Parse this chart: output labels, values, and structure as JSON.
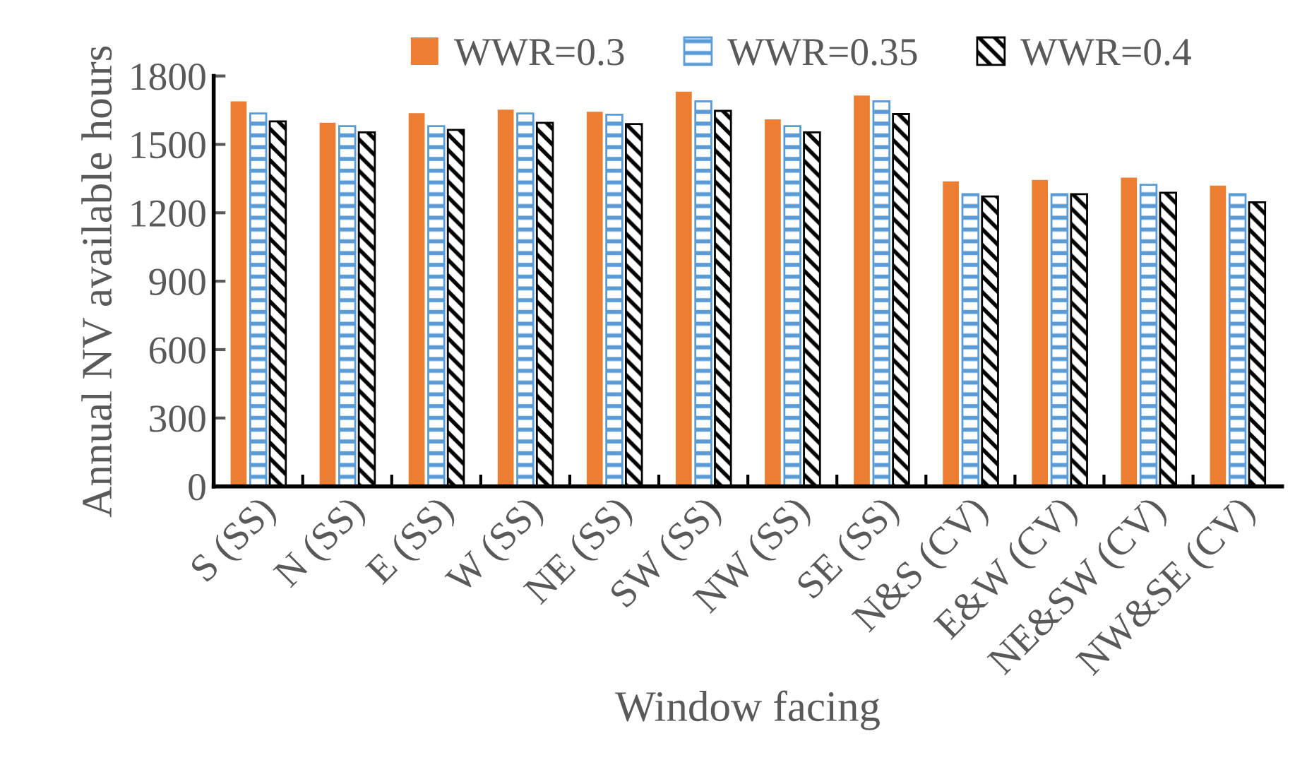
{
  "chart_data": {
    "type": "bar",
    "xlabel": "Window facing",
    "ylabel": "Annual NV available hours",
    "categories": [
      "S (SS)",
      "N (SS)",
      "E (SS)",
      "W (SS)",
      "NE (SS)",
      "SW (SS)",
      "NW (SS)",
      "SE (SS)",
      "N&S (CV)",
      "E&W (CV)",
      "NE&SW (CV)",
      "NW&SE (CV)"
    ],
    "series": [
      {
        "name": "WWR=0.3",
        "color": "#ed7d31",
        "values": [
          1689,
          1595,
          1637,
          1652,
          1643,
          1731,
          1610,
          1714,
          1338,
          1344,
          1354,
          1319
        ]
      },
      {
        "name": "WWR=0.35",
        "color": "#5b9bd5",
        "values": [
          1636,
          1580,
          1580,
          1636,
          1630,
          1689,
          1580,
          1689,
          1282,
          1282,
          1323,
          1282
        ]
      },
      {
        "name": "WWR=0.4",
        "color": "#000000",
        "values": [
          1601,
          1553,
          1564,
          1595,
          1589,
          1647,
          1553,
          1633,
          1272,
          1282,
          1288,
          1246
        ]
      }
    ],
    "ylim": [
      0,
      1800
    ],
    "yticks": [
      0,
      300,
      600,
      900,
      1200,
      1500,
      1800
    ],
    "grid": false,
    "legend": "top"
  }
}
